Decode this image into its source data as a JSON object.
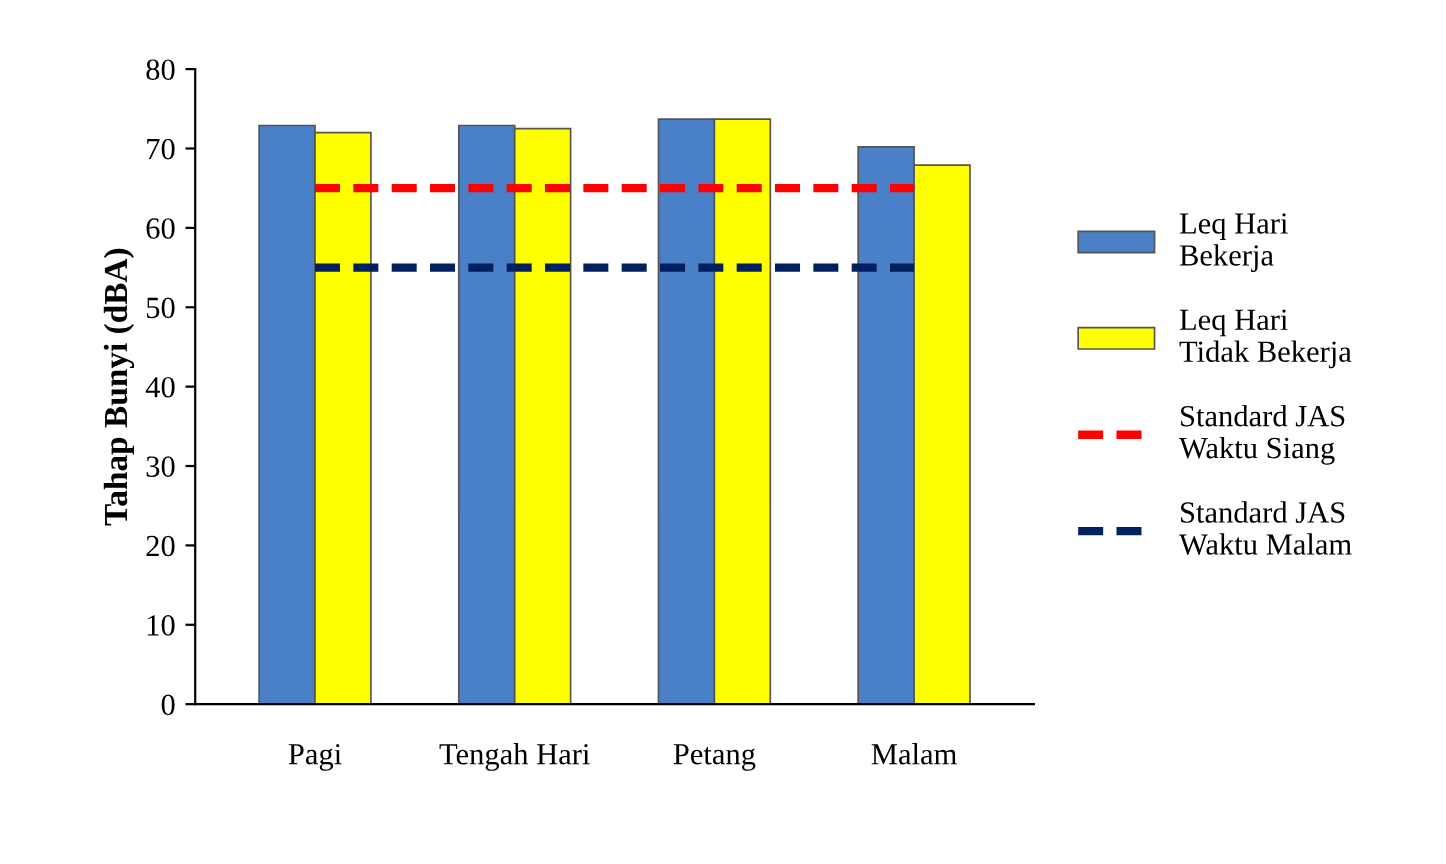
{
  "chart_data": {
    "type": "bar",
    "ylabel": "Tahap Bunyi (dBA)",
    "categories": [
      "Pagi",
      "Tengah Hari",
      "Petang",
      "Malam"
    ],
    "series": [
      {
        "name": "Leq Hari\nBekerja",
        "color": "#4a80c8",
        "values": [
          72.9,
          72.9,
          73.7,
          70.2
        ]
      },
      {
        "name": "Leq Hari\nTidak Bekerja",
        "color": "#ffff00",
        "values": [
          72.0,
          72.5,
          73.7,
          67.9
        ]
      },
      {
        "name": "Standard JAS\nWaktu Siang",
        "type": "line",
        "line_style": "dashed",
        "color": "#ff0000",
        "values": [
          65,
          65,
          65,
          65
        ]
      },
      {
        "name": "Standard JAS\nWaktu Malam",
        "type": "line",
        "line_style": "dashed",
        "color": "#002060",
        "values": [
          55,
          55,
          55,
          55
        ]
      }
    ],
    "ylim": [
      0,
      80
    ],
    "yticks": [
      0,
      10,
      20,
      30,
      40,
      50,
      60,
      70,
      80
    ],
    "grid": false,
    "legend": "right"
  }
}
